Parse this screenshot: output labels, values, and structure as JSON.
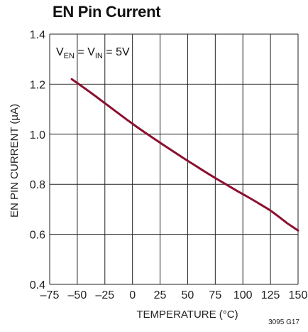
{
  "chart_data": {
    "type": "line",
    "title": "EN Pin Current",
    "xlabel": "TEMPERATURE (°C)",
    "ylabel": "EN PIN CURRENT (µA)",
    "xlim": [
      -75,
      150
    ],
    "ylim": [
      0.4,
      1.4
    ],
    "xticks": [
      -75,
      -50,
      -25,
      0,
      25,
      50,
      75,
      100,
      125,
      150
    ],
    "xtick_labels": [
      "–75",
      "–50",
      "–25",
      "0",
      "25",
      "50",
      "75",
      "100",
      "125",
      "150"
    ],
    "yticks": [
      0.4,
      0.6,
      0.8,
      1.0,
      1.2,
      1.4
    ],
    "ytick_labels": [
      "0.4",
      "0.6",
      "0.8",
      "1.0",
      "1.2",
      "1.4"
    ],
    "grid": true,
    "annotation": {
      "parts": [
        {
          "text": "V",
          "sub": false
        },
        {
          "text": "EN",
          "sub": true
        },
        {
          "text": " = V",
          "sub": false
        },
        {
          "text": "IN",
          "sub": true
        },
        {
          "text": " = 5V",
          "sub": false
        }
      ]
    },
    "series": [
      {
        "color": "#8B1030",
        "x": [
          -55,
          -45,
          -35,
          -25,
          -15,
          -5,
          0,
          5,
          15,
          25,
          35,
          45,
          55,
          65,
          75,
          85,
          95,
          105,
          115,
          125,
          135,
          140,
          145,
          150
        ],
        "y": [
          1.22,
          1.189,
          1.157,
          1.124,
          1.091,
          1.058,
          1.042,
          1.026,
          0.996,
          0.966,
          0.937,
          0.908,
          0.88,
          0.852,
          0.825,
          0.799,
          0.773,
          0.748,
          0.722,
          0.695,
          0.662,
          0.645,
          0.63,
          0.615
        ]
      }
    ]
  },
  "figure_id": "3095 G17"
}
